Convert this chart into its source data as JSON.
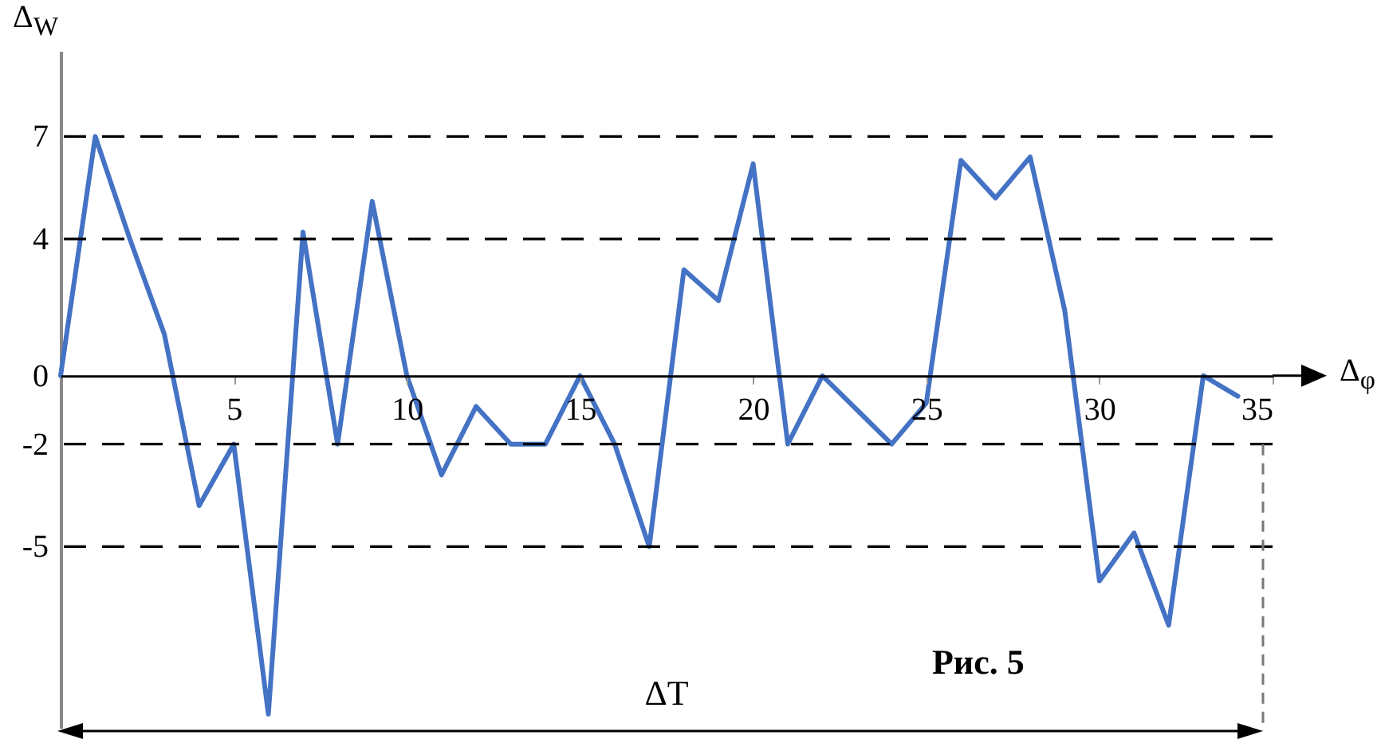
{
  "chart_data": {
    "type": "line",
    "xlabel": "Δ$_{φ}$",
    "ylabel": "Δ$_{W}$",
    "x": [
      0,
      1,
      2,
      3,
      4,
      5,
      6,
      7,
      8,
      9,
      10,
      11,
      12,
      13,
      14,
      15,
      16,
      17,
      18,
      19,
      20,
      21,
      22,
      23,
      24,
      25,
      26,
      27,
      28,
      29,
      30,
      31,
      32,
      33,
      34
    ],
    "series": [
      {
        "color": "#4472c4",
        "values": [
          0,
          7,
          4,
          1.2,
          -3.8,
          -2,
          -9.9,
          4.2,
          -2,
          5.1,
          0,
          -2.9,
          -0.9,
          -2,
          -2,
          0,
          -2,
          -5,
          3.1,
          2.2,
          6.2,
          -2,
          0,
          -1,
          -2,
          -0.8,
          6.3,
          5.2,
          6.4,
          1.9,
          -6,
          -4.6,
          -7.3,
          0,
          -0.6
        ]
      }
    ],
    "xlim": [
      0,
      35
    ],
    "ylim": [
      -10.3,
      9.5
    ],
    "xticks": [
      5,
      10,
      15,
      20,
      25,
      30,
      35
    ],
    "yticks": [
      -5,
      -2,
      0,
      4,
      7
    ],
    "ref_lines": [
      {
        "axis": "y",
        "value": 7,
        "line_style": "dashed",
        "color": "#000000"
      },
      {
        "axis": "y",
        "value": 4,
        "line_style": "dashed",
        "color": "#000000"
      },
      {
        "axis": "y",
        "value": -2,
        "line_style": "dashed",
        "color": "#000000"
      },
      {
        "axis": "y",
        "value": -5,
        "line_style": "dashed",
        "color": "#000000"
      }
    ],
    "annotations": [
      "ΔT",
      "Рис. 5"
    ],
    "marker": "none",
    "line_style": "solid",
    "grid": false
  }
}
